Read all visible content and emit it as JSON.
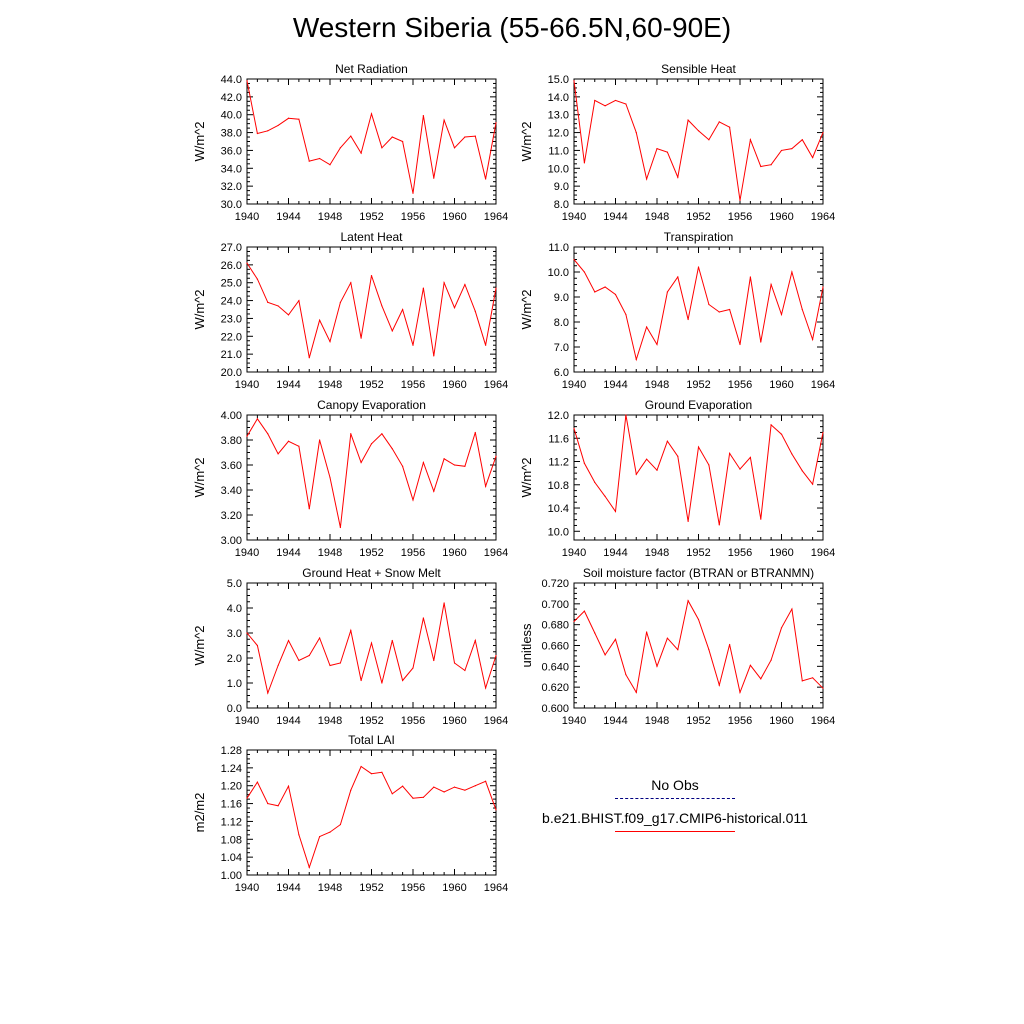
{
  "title": "Western Siberia (55-66.5N,60-90E)",
  "legend": [
    {
      "label": "No Obs",
      "color": "#000080",
      "style": "dashed"
    },
    {
      "label": "b.e21.BHIST.f09_g17.CMIP6-historical.011",
      "color": "#ff0000",
      "style": "solid"
    }
  ],
  "chart_data": [
    {
      "type": "line",
      "title": "Net Radiation",
      "ylabel": "W/m^2",
      "xlim": [
        1940,
        1964
      ],
      "ylim": [
        30,
        44
      ],
      "xticks": [
        "1940",
        "1944",
        "1948",
        "1952",
        "1956",
        "1960",
        "1964"
      ],
      "yticks": [
        "30.0",
        "32.0",
        "34.0",
        "36.0",
        "38.0",
        "40.0",
        "42.0",
        "44.0"
      ],
      "x": [
        1940,
        1941,
        1942,
        1943,
        1944,
        1945,
        1946,
        1947,
        1948,
        1949,
        1950,
        1951,
        1952,
        1953,
        1954,
        1955,
        1956,
        1957,
        1958,
        1959,
        1960,
        1961,
        1962,
        1963,
        1964
      ],
      "series": [
        {
          "color": "#ff0000",
          "values": [
            43.8,
            37.9,
            38.2,
            38.8,
            39.6,
            39.5,
            34.8,
            35.1,
            34.4,
            36.3,
            37.6,
            35.7,
            40.1,
            36.3,
            37.5,
            37.0,
            31.2,
            39.9,
            32.9,
            39.4,
            36.3,
            37.5,
            37.6,
            32.8,
            39.1
          ]
        }
      ]
    },
    {
      "type": "line",
      "title": "Sensible Heat",
      "ylabel": "W/m^2",
      "xlim": [
        1940,
        1964
      ],
      "ylim": [
        8,
        15
      ],
      "xticks": [
        "1940",
        "1944",
        "1948",
        "1952",
        "1956",
        "1960",
        "1964"
      ],
      "yticks": [
        "8.0",
        "9.0",
        "10.0",
        "11.0",
        "12.0",
        "13.0",
        "14.0",
        "15.0"
      ],
      "x": [
        1940,
        1941,
        1942,
        1943,
        1944,
        1945,
        1946,
        1947,
        1948,
        1949,
        1950,
        1951,
        1952,
        1953,
        1954,
        1955,
        1956,
        1957,
        1958,
        1959,
        1960,
        1961,
        1962,
        1963,
        1964
      ],
      "series": [
        {
          "color": "#ff0000",
          "values": [
            14.9,
            10.3,
            13.8,
            13.5,
            13.8,
            13.6,
            12.0,
            9.4,
            11.1,
            10.9,
            9.5,
            12.7,
            12.1,
            11.6,
            12.6,
            12.3,
            8.2,
            11.6,
            10.1,
            10.2,
            11.0,
            11.1,
            11.6,
            10.6,
            12.0
          ]
        }
      ]
    },
    {
      "type": "line",
      "title": "Latent Heat",
      "ylabel": "W/m^2",
      "xlim": [
        1940,
        1964
      ],
      "ylim": [
        20,
        27
      ],
      "xticks": [
        "1940",
        "1944",
        "1948",
        "1952",
        "1956",
        "1960",
        "1964"
      ],
      "yticks": [
        "20.0",
        "21.0",
        "22.0",
        "23.0",
        "24.0",
        "25.0",
        "26.0",
        "27.0"
      ],
      "x": [
        1940,
        1941,
        1942,
        1943,
        1944,
        1945,
        1946,
        1947,
        1948,
        1949,
        1950,
        1951,
        1952,
        1953,
        1954,
        1955,
        1956,
        1957,
        1958,
        1959,
        1960,
        1961,
        1962,
        1963,
        1964
      ],
      "series": [
        {
          "color": "#ff0000",
          "values": [
            26.1,
            25.2,
            23.9,
            23.7,
            23.2,
            24.0,
            20.8,
            22.9,
            21.7,
            23.9,
            25.0,
            21.9,
            25.4,
            23.7,
            22.3,
            23.5,
            21.5,
            24.7,
            20.9,
            25.0,
            23.6,
            24.9,
            23.4,
            21.5,
            24.7
          ]
        }
      ]
    },
    {
      "type": "line",
      "title": "Transpiration",
      "ylabel": "W/m^2",
      "xlim": [
        1940,
        1964
      ],
      "ylim": [
        6,
        11
      ],
      "xticks": [
        "1940",
        "1944",
        "1948",
        "1952",
        "1956",
        "1960",
        "1964"
      ],
      "yticks": [
        "6.0",
        "7.0",
        "8.0",
        "9.0",
        "10.0",
        "11.0"
      ],
      "x": [
        1940,
        1941,
        1942,
        1943,
        1944,
        1945,
        1946,
        1947,
        1948,
        1949,
        1950,
        1951,
        1952,
        1953,
        1954,
        1955,
        1956,
        1957,
        1958,
        1959,
        1960,
        1961,
        1962,
        1963,
        1964
      ],
      "series": [
        {
          "color": "#ff0000",
          "values": [
            10.5,
            10.0,
            9.2,
            9.4,
            9.1,
            8.3,
            6.5,
            7.8,
            7.1,
            9.2,
            9.8,
            8.1,
            10.2,
            8.7,
            8.4,
            8.5,
            7.1,
            9.8,
            7.2,
            9.5,
            8.3,
            10.0,
            8.5,
            7.3,
            9.4
          ]
        }
      ]
    },
    {
      "type": "line",
      "title": "Canopy Evaporation",
      "ylabel": "W/m^2",
      "xlim": [
        1940,
        1964
      ],
      "ylim": [
        3.0,
        4.0
      ],
      "xticks": [
        "1940",
        "1944",
        "1948",
        "1952",
        "1956",
        "1960",
        "1964"
      ],
      "yticks": [
        "3.00",
        "3.20",
        "3.40",
        "3.60",
        "3.80",
        "4.00"
      ],
      "x": [
        1940,
        1941,
        1942,
        1943,
        1944,
        1945,
        1946,
        1947,
        1948,
        1949,
        1950,
        1951,
        1952,
        1953,
        1954,
        1955,
        1956,
        1957,
        1958,
        1959,
        1960,
        1961,
        1962,
        1963,
        1964
      ],
      "series": [
        {
          "color": "#ff0000",
          "values": [
            3.83,
            3.97,
            3.85,
            3.69,
            3.79,
            3.75,
            3.25,
            3.8,
            3.5,
            3.1,
            3.85,
            3.62,
            3.77,
            3.85,
            3.73,
            3.59,
            3.32,
            3.62,
            3.39,
            3.65,
            3.6,
            3.59,
            3.86,
            3.43,
            3.67
          ]
        }
      ]
    },
    {
      "type": "line",
      "title": "Ground Evaporation",
      "ylabel": "W/m^2",
      "xlim": [
        1940,
        1964
      ],
      "ylim": [
        9.85,
        12.0
      ],
      "xticks": [
        "1940",
        "1944",
        "1948",
        "1952",
        "1956",
        "1960",
        "1964"
      ],
      "yticks": [
        "10.0",
        "10.4",
        "10.8",
        "11.2",
        "11.6",
        "12.0"
      ],
      "x": [
        1940,
        1941,
        1942,
        1943,
        1944,
        1945,
        1946,
        1947,
        1948,
        1949,
        1950,
        1951,
        1952,
        1953,
        1954,
        1955,
        1956,
        1957,
        1958,
        1959,
        1960,
        1961,
        1962,
        1963,
        1964
      ],
      "series": [
        {
          "color": "#ff0000",
          "values": [
            11.77,
            11.17,
            10.84,
            10.6,
            10.34,
            12.0,
            10.98,
            11.24,
            11.05,
            11.55,
            11.29,
            10.17,
            11.45,
            11.14,
            10.11,
            11.34,
            11.07,
            11.27,
            10.21,
            11.83,
            11.67,
            11.33,
            11.04,
            10.81,
            11.7
          ]
        }
      ]
    },
    {
      "type": "line",
      "title": "Ground Heat + Snow Melt",
      "ylabel": "W/m^2",
      "xlim": [
        1940,
        1964
      ],
      "ylim": [
        0,
        5
      ],
      "xticks": [
        "1940",
        "1944",
        "1948",
        "1952",
        "1956",
        "1960",
        "1964"
      ],
      "yticks": [
        "0.0",
        "1.0",
        "2.0",
        "3.0",
        "4.0",
        "5.0"
      ],
      "x": [
        1940,
        1941,
        1942,
        1943,
        1944,
        1945,
        1946,
        1947,
        1948,
        1949,
        1950,
        1951,
        1952,
        1953,
        1954,
        1955,
        1956,
        1957,
        1958,
        1959,
        1960,
        1961,
        1962,
        1963,
        1964
      ],
      "series": [
        {
          "color": "#ff0000",
          "values": [
            3.0,
            2.5,
            0.6,
            1.7,
            2.7,
            1.9,
            2.1,
            2.8,
            1.7,
            1.8,
            3.1,
            1.1,
            2.6,
            1.0,
            2.7,
            1.1,
            1.6,
            3.6,
            1.9,
            4.2,
            1.8,
            1.5,
            2.7,
            0.8,
            2.1
          ]
        }
      ]
    },
    {
      "type": "line",
      "title": "Soil moisture factor (BTRAN or BTRANMN)",
      "ylabel": "unitless",
      "xlim": [
        1940,
        1964
      ],
      "ylim": [
        0.6,
        0.72
      ],
      "xticks": [
        "1940",
        "1944",
        "1948",
        "1952",
        "1956",
        "1960",
        "1964"
      ],
      "yticks": [
        "0.600",
        "0.620",
        "0.640",
        "0.660",
        "0.680",
        "0.700",
        "0.720"
      ],
      "x": [
        1940,
        1941,
        1942,
        1943,
        1944,
        1945,
        1946,
        1947,
        1948,
        1949,
        1950,
        1951,
        1952,
        1953,
        1954,
        1955,
        1956,
        1957,
        1958,
        1959,
        1960,
        1961,
        1962,
        1963,
        1964
      ],
      "series": [
        {
          "color": "#ff0000",
          "values": [
            0.683,
            0.693,
            0.672,
            0.651,
            0.666,
            0.632,
            0.615,
            0.673,
            0.64,
            0.667,
            0.656,
            0.703,
            0.685,
            0.656,
            0.622,
            0.661,
            0.615,
            0.641,
            0.628,
            0.646,
            0.677,
            0.695,
            0.626,
            0.629,
            0.619
          ]
        }
      ]
    },
    {
      "type": "line",
      "title": "Total LAI",
      "ylabel": "m2/m2",
      "xlim": [
        1940,
        1964
      ],
      "ylim": [
        1.0,
        1.28
      ],
      "xticks": [
        "1940",
        "1944",
        "1948",
        "1952",
        "1956",
        "1960",
        "1964"
      ],
      "yticks": [
        "1.00",
        "1.04",
        "1.08",
        "1.12",
        "1.16",
        "1.20",
        "1.24",
        "1.28"
      ],
      "x": [
        1940,
        1941,
        1942,
        1943,
        1944,
        1945,
        1946,
        1947,
        1948,
        1949,
        1950,
        1951,
        1952,
        1953,
        1954,
        1955,
        1956,
        1957,
        1958,
        1959,
        1960,
        1961,
        1962,
        1963,
        1964
      ],
      "series": [
        {
          "color": "#ff0000",
          "values": [
            1.172,
            1.208,
            1.16,
            1.155,
            1.199,
            1.09,
            1.017,
            1.086,
            1.096,
            1.113,
            1.19,
            1.243,
            1.227,
            1.23,
            1.182,
            1.199,
            1.172,
            1.174,
            1.197,
            1.186,
            1.197,
            1.19,
            1.2,
            1.21,
            1.146
          ]
        }
      ]
    }
  ]
}
